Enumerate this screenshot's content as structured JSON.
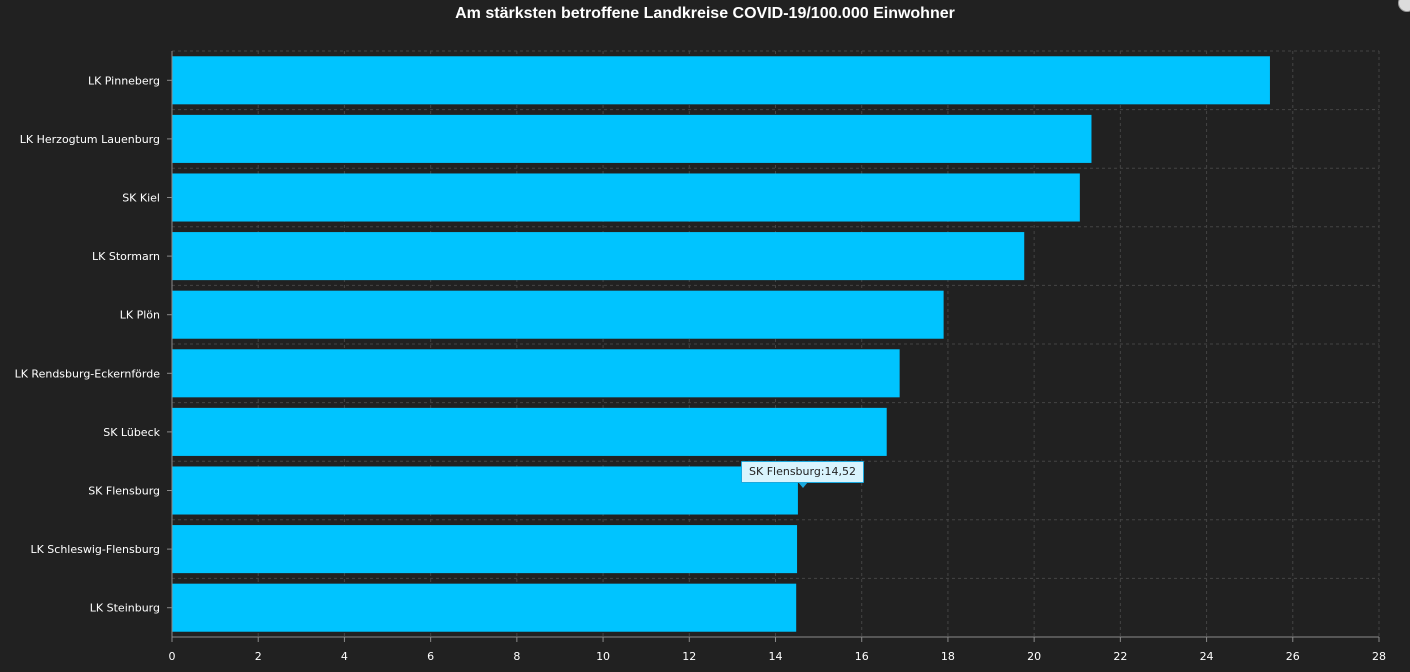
{
  "chart_data": {
    "type": "bar",
    "orientation": "horizontal",
    "title": "Am stärksten betroffene Landkreise COVID-19/100.000 Einwohner",
    "categories": [
      "LK Pinneberg",
      "LK Herzogtum Lauenburg",
      "SK Kiel",
      "LK Stormarn",
      "LK Plön",
      "LK Rendsburg-Eckernförde",
      "SK Lübeck",
      "SK Flensburg",
      "LK Schleswig-Flensburg",
      "LK Steinburg"
    ],
    "values": [
      25.47,
      21.33,
      21.06,
      19.77,
      17.9,
      16.88,
      16.58,
      14.52,
      14.5,
      14.48
    ],
    "xlim": [
      0,
      28
    ],
    "xticks": [
      "0",
      "2",
      "4",
      "6",
      "8",
      "10",
      "12",
      "14",
      "16",
      "18",
      "20",
      "22",
      "24",
      "26",
      "28"
    ],
    "xlabel": "",
    "ylabel": "",
    "grid": true,
    "bar_color": "#00c4ff",
    "background": "#212121"
  },
  "tooltip": {
    "text": "SK Flensburg:14,52"
  }
}
